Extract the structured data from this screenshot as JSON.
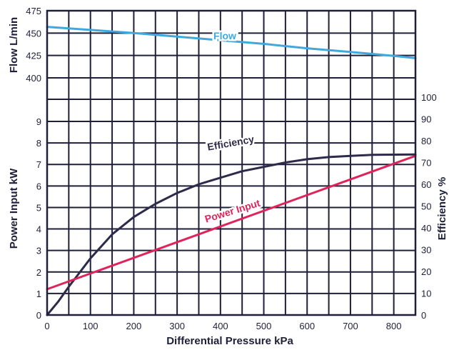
{
  "chart_data": {
    "type": "line",
    "x": {
      "label": "Differential Pressure kPa",
      "range": [
        0,
        850
      ],
      "ticks": [
        0,
        100,
        200,
        300,
        400,
        500,
        600,
        700,
        800
      ]
    },
    "y_flow": {
      "label": "Flow L/min",
      "range": [
        400,
        475
      ],
      "ticks": [
        400,
        425,
        450,
        475
      ]
    },
    "y_power": {
      "label": "Power Input kW",
      "range": [
        0,
        9
      ],
      "ticks": [
        0,
        1,
        2,
        3,
        4,
        5,
        6,
        7,
        8,
        9
      ]
    },
    "y_efficiency": {
      "label": "Efficiency %",
      "range": [
        0,
        100
      ],
      "ticks": [
        0,
        10,
        20,
        30,
        40,
        50,
        60,
        70,
        80,
        90,
        100
      ]
    },
    "grid": true,
    "series": [
      {
        "name": "Flow",
        "axis": "flow",
        "color": "#3fa9dd",
        "x": [
          0,
          100,
          200,
          300,
          400,
          500,
          600,
          700,
          800,
          850
        ],
        "y": [
          457,
          453.5,
          450,
          446,
          442,
          438,
          433,
          429,
          424.5,
          422
        ]
      },
      {
        "name": "Efficiency",
        "axis": "efficiency",
        "color": "#2e2a4a",
        "x": [
          0,
          25,
          50,
          100,
          150,
          200,
          250,
          300,
          350,
          400,
          450,
          500,
          550,
          600,
          650,
          700,
          750,
          800,
          850
        ],
        "y": [
          0,
          6,
          13,
          26,
          37,
          45,
          51,
          56,
          60,
          63,
          66,
          68,
          70,
          71.5,
          72.5,
          73,
          73.5,
          73.6,
          73.7
        ]
      },
      {
        "name": "Power Input",
        "axis": "power",
        "color": "#e0245a",
        "x": [
          0,
          850
        ],
        "y": [
          1.2,
          7.4
        ]
      }
    ]
  }
}
